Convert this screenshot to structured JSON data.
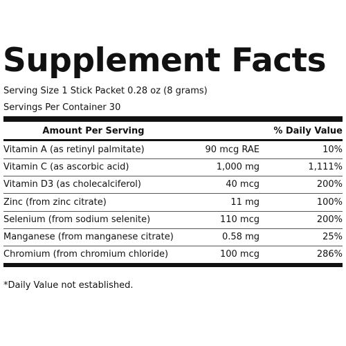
{
  "title": "Supplement Facts",
  "serving_size": "Serving Size 1 Stick Packet 0.28 oz (8 grams)",
  "servings_per_container": "Servings Per Container 30",
  "table": {
    "header": [
      "Amount Per Serving",
      "% Daily Value"
    ],
    "rows": [
      [
        "Vitamin A (as retinyl palmitate)",
        "90 mcg RAE",
        "10%"
      ],
      [
        "Vitamin C (as ascorbic acid)",
        "1,000 mg",
        "1,111%"
      ],
      [
        "Vitamin D3 (as cholecalciferol)",
        "40 mcg",
        "200%"
      ],
      [
        "Zinc (from zinc citrate)",
        "11 mg",
        "100%"
      ],
      [
        "Selenium (from sodium selenite)",
        "110 mcg",
        "200%"
      ],
      [
        "Manganese (from manganese citrate)",
        "0.58 mg",
        "25%"
      ],
      [
        "Chromium (from chromium chloride)",
        "100 mcg",
        "286%"
      ]
    ]
  },
  "footnote": "*Daily Value not established."
}
